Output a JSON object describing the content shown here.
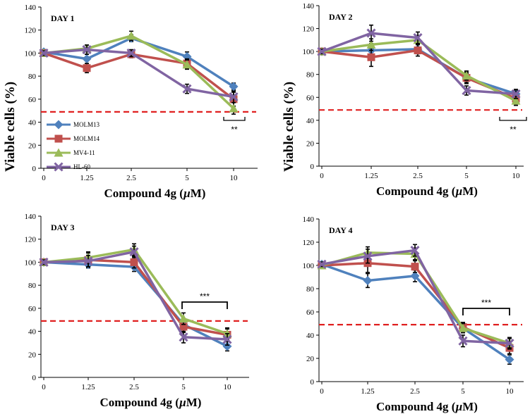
{
  "chart_data": {
    "type": "line",
    "shared_ylabel": "Viable cells (%)",
    "legend": [
      {
        "name": "MOLM13",
        "color": "#4f81bd",
        "marker": "diamond"
      },
      {
        "name": "MOLM14",
        "color": "#c0504d",
        "marker": "square"
      },
      {
        "name": "MV4-11",
        "color": "#9bbb59",
        "marker": "triangle"
      },
      {
        "name": "HL-60",
        "color": "#8064a2",
        "marker": "x"
      }
    ],
    "reference_line": {
      "value": 49,
      "color": "#e02020",
      "style": "dashed"
    },
    "panels": [
      {
        "title": "DAY 1",
        "categories": [
          "0",
          "1.25",
          "2.5",
          "5",
          "10"
        ],
        "xlabel": "Compound 4g (µM)",
        "xlabel_text": "Compound 4g (",
        "xlabel_mu": "µ",
        "xlabel_unit": "M)",
        "yticks": [
          "0",
          "20",
          "40",
          "60",
          "80",
          "100",
          "120",
          "140"
        ],
        "ylim": [
          0,
          140
        ],
        "series": [
          {
            "name": "MOLM13",
            "values": [
              101,
              95,
              113,
              97,
              71
            ],
            "errors": [
              2,
              4,
              3,
              4,
              3
            ]
          },
          {
            "name": "MOLM14",
            "values": [
              100,
              87,
              99,
              91,
              60
            ],
            "errors": [
              2,
              4,
              3,
              4,
              6
            ]
          },
          {
            "name": "MV4-11",
            "values": [
              100,
              104,
              115,
              90,
              52
            ],
            "errors": [
              2,
              3,
              4,
              4,
              5
            ]
          },
          {
            "name": "HL-60",
            "values": [
              100,
              103,
              100,
              69,
              62
            ],
            "errors": [
              2,
              4,
              3,
              4,
              5
            ]
          }
        ],
        "significance": "**"
      },
      {
        "title": "DAY 2",
        "categories": [
          "0",
          "1.25",
          "2.5",
          "5",
          "10"
        ],
        "xlabel": "Compound 4g (µM)",
        "xlabel_text": "Compound 4g (",
        "xlabel_mu": "µ",
        "xlabel_unit": "M)",
        "yticks": [
          "0",
          "20",
          "40",
          "60",
          "80",
          "100",
          "120",
          "140"
        ],
        "ylim": [
          0,
          140
        ],
        "series": [
          {
            "name": "MOLM13",
            "values": [
              100,
              101,
              102,
              77,
              63
            ],
            "errors": [
              2,
              6,
              4,
              4,
              3
            ]
          },
          {
            "name": "MOLM14",
            "values": [
              100,
              95,
              101,
              77,
              59
            ],
            "errors": [
              2,
              8,
              5,
              5,
              5
            ]
          },
          {
            "name": "MV4-11",
            "values": [
              100,
              106,
              110,
              79,
              57
            ],
            "errors": [
              2,
              5,
              4,
              4,
              4
            ]
          },
          {
            "name": "HL-60",
            "values": [
              100,
              116,
              112,
              66,
              63
            ],
            "errors": [
              2,
              7,
              5,
              4,
              4
            ]
          }
        ],
        "significance": "**"
      },
      {
        "title": "DAY 3",
        "categories": [
          "0",
          "1.25",
          "2.5",
          "5",
          "10"
        ],
        "xlabel": "Compound 4g (µM)",
        "xlabel_text": "Compound 4g (",
        "xlabel_mu": "µ",
        "xlabel_unit": "M)",
        "yticks": [
          "0",
          "20",
          "40",
          "60",
          "80",
          "100",
          "120",
          "140"
        ],
        "ylim": [
          0,
          140
        ],
        "series": [
          {
            "name": "MOLM13",
            "values": [
              100,
              98,
              96,
              46,
              27
            ],
            "errors": [
              2,
              3,
              4,
              4,
              4
            ]
          },
          {
            "name": "MOLM14",
            "values": [
              100,
              102,
              100,
              44,
              37
            ],
            "errors": [
              2,
              6,
              5,
              5,
              5
            ]
          },
          {
            "name": "MV4-11",
            "values": [
              100,
              104,
              111,
              51,
              38
            ],
            "errors": [
              2,
              5,
              5,
              5,
              5
            ]
          },
          {
            "name": "HL-60",
            "values": [
              100,
              101,
              109,
              35,
              33
            ],
            "errors": [
              2,
              5,
              5,
              5,
              5
            ]
          }
        ],
        "significance": "***"
      },
      {
        "title": "DAY  4",
        "categories": [
          "0",
          "1.25",
          "2.5",
          "5",
          "10"
        ],
        "xlabel": "Compound 4g (µM)",
        "xlabel_text": "Compound 4g (",
        "xlabel_mu": "µ",
        "xlabel_unit": "M)",
        "yticks": [
          "0",
          "20",
          "40",
          "60",
          "80",
          "100",
          "120",
          "140"
        ],
        "ylim": [
          0,
          140
        ],
        "series": [
          {
            "name": "MOLM13",
            "values": [
              101,
              87,
              91,
              46,
              19
            ],
            "errors": [
              2,
              6,
              5,
              4,
              4
            ]
          },
          {
            "name": "MOLM14",
            "values": [
              100,
              102,
              99,
              47,
              29
            ],
            "errors": [
              2,
              8,
              5,
              4,
              5
            ]
          },
          {
            "name": "MV4-11",
            "values": [
              100,
              111,
              110,
              46,
              33
            ],
            "errors": [
              2,
              5,
              5,
              4,
              5
            ]
          },
          {
            "name": "HL-60",
            "values": [
              101,
              108,
              113,
              35,
              33
            ],
            "errors": [
              2,
              6,
              5,
              5,
              4
            ]
          }
        ],
        "significance": "***"
      }
    ]
  }
}
